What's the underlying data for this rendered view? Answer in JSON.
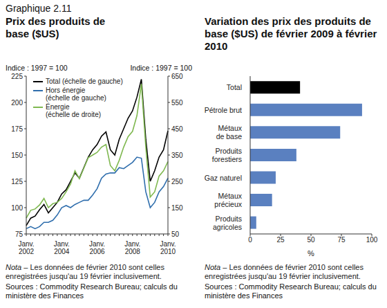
{
  "figure": "Graphique 2.11",
  "chart_data": [
    {
      "type": "line",
      "title": "Prix des produits de base ($US)",
      "y_label": "Indice : 1997 = 100",
      "y2_label": "Indice : 1997 = 100",
      "categories": [
        "Janv. 2002",
        null,
        null,
        null,
        null,
        null,
        null,
        null,
        "Janv. 2004",
        null,
        null,
        null,
        null,
        null,
        null,
        null,
        "Janv. 2006",
        null,
        null,
        null,
        null,
        null,
        null,
        null,
        "Janv. 2008",
        null,
        null,
        null,
        null,
        null,
        null,
        null,
        "Janv. 2010"
      ],
      "series": [
        {
          "name": "Total (échelle de gauche)",
          "color": "#000000",
          "axis": "y",
          "values": [
            83,
            90,
            92,
            98,
            103,
            95,
            100,
            105,
            113,
            117,
            125,
            133,
            128,
            138,
            148,
            155,
            160,
            168,
            172,
            155,
            150,
            165,
            175,
            185,
            192,
            205,
            222,
            165,
            125,
            135,
            148,
            155,
            173
          ]
        },
        {
          "name": "Hors énergie (échelle de gauche)",
          "color": "#2f6ead",
          "axis": "y",
          "values": [
            80,
            82,
            80,
            82,
            86,
            86,
            88,
            93,
            100,
            102,
            100,
            103,
            105,
            107,
            107,
            112,
            118,
            128,
            132,
            133,
            133,
            138,
            137,
            140,
            143,
            148,
            147,
            115,
            100,
            105,
            115,
            120,
            128
          ]
        },
        {
          "name": "Énergie (échelle de droite)",
          "color": "#7fb850",
          "axis": "y2",
          "values": [
            110,
            140,
            145,
            160,
            185,
            150,
            165,
            170,
            185,
            210,
            240,
            290,
            260,
            300,
            340,
            350,
            360,
            380,
            390,
            310,
            290,
            330,
            380,
            420,
            440,
            500,
            620,
            380,
            190,
            210,
            270,
            290,
            325
          ]
        }
      ],
      "ylim": [
        75,
        225
      ],
      "yticks": [
        75,
        100,
        125,
        150,
        175,
        200,
        225
      ],
      "y2lim": [
        50,
        650
      ],
      "y2ticks": [
        50,
        150,
        250,
        350,
        450,
        550,
        650
      ],
      "legend": "upper left",
      "grid": false,
      "note": "Nota – Les données de février 2010 sont celles enregistrées jusqu'au 19 février inclusivement.",
      "source": "Sources : Commodity Research Bureau; calculs du ministère des Finances"
    },
    {
      "type": "bar",
      "orientation": "horizontal",
      "title": "Variation des prix des produits de base ($US) de février 2009 à février 2010",
      "x_label": "%",
      "categories": [
        "Total",
        "Pétrole brut",
        "Métaux de base",
        "Produits forestiers",
        "Gaz naturel",
        "Métaux précieux",
        "Produits agricoles"
      ],
      "values": [
        41,
        92,
        74,
        38,
        21,
        18,
        5
      ],
      "colors": [
        "#000000",
        "#5a80c0",
        "#5a80c0",
        "#5a80c0",
        "#5a80c0",
        "#5a80c0",
        "#5a80c0"
      ],
      "xlim": [
        0,
        100
      ],
      "xticks": [
        0,
        25,
        50,
        75,
        100
      ],
      "grid": false,
      "note": "Nota – Les données de février 2010 sont celles enregistrées jusqu'au 19 février inclusivement.",
      "source": "Sources : Commodity Research Bureau; calculs du ministère des Finances"
    }
  ]
}
